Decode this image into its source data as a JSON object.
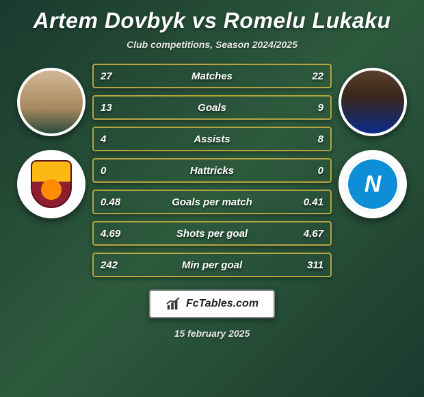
{
  "title": "Artem Dovbyk vs Romelu Lukaku",
  "subtitle": "Club competitions, Season 2024/2025",
  "player1": {
    "name": "Artem Dovbyk",
    "club": "Roma"
  },
  "player2": {
    "name": "Romelu Lukaku",
    "club": "Napoli"
  },
  "stats": {
    "type": "comparison-table",
    "row_border_color": "#b5a642",
    "row_bg": "transparent",
    "text_color": "#ffffff",
    "label_fontsize": 15,
    "value_fontsize": 15,
    "rows": [
      {
        "label": "Matches",
        "left": "27",
        "right": "22"
      },
      {
        "label": "Goals",
        "left": "13",
        "right": "9"
      },
      {
        "label": "Assists",
        "left": "4",
        "right": "8"
      },
      {
        "label": "Hattricks",
        "left": "0",
        "right": "0"
      },
      {
        "label": "Goals per match",
        "left": "0.48",
        "right": "0.41"
      },
      {
        "label": "Shots per goal",
        "left": "4.69",
        "right": "4.67"
      },
      {
        "label": "Min per goal",
        "left": "242",
        "right": "311"
      }
    ]
  },
  "badge_text": "FcTables.com",
  "date": "15 february 2025",
  "colors": {
    "bg_gradient_a": "#1a3a2e",
    "bg_gradient_b": "#2d5a3d",
    "row_border": "#b5a642",
    "title": "#ffffff",
    "napoli": "#0e8ed6",
    "roma_gold": "#fdb913",
    "roma_red": "#8e1f2f"
  }
}
